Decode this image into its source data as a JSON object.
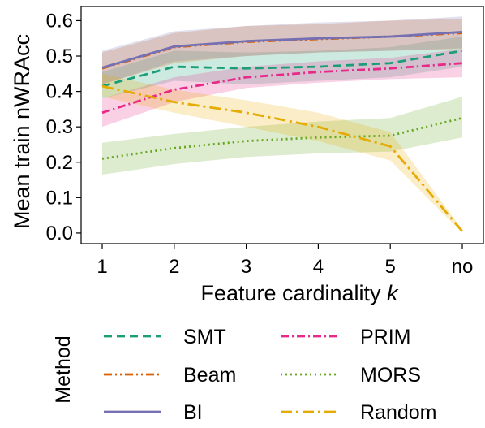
{
  "chart_data": {
    "type": "line",
    "xlabel": "Feature cardinality k",
    "xlabel_main": "Feature cardinality ",
    "xlabel_var": "k",
    "ylabel": "Mean train nWRAcc",
    "categories": [
      "1",
      "2",
      "3",
      "4",
      "5",
      "no"
    ],
    "ylim": [
      -0.03,
      0.64
    ],
    "yticks": [
      0.0,
      0.1,
      0.2,
      0.3,
      0.4,
      0.5,
      0.6
    ],
    "ytick_labels": [
      "0.0",
      "0.1",
      "0.2",
      "0.3",
      "0.4",
      "0.5",
      "0.6"
    ],
    "grid": false,
    "legend_title": "Method",
    "legend_position": "below",
    "series": [
      {
        "name": "SMT",
        "color": "#1b9e77",
        "dash": "10,6",
        "values": [
          0.415,
          0.47,
          0.465,
          0.47,
          0.48,
          0.515
        ],
        "lower": [
          0.38,
          0.43,
          0.42,
          0.43,
          0.44,
          0.47
        ],
        "upper": [
          0.455,
          0.515,
          0.51,
          0.515,
          0.525,
          0.555
        ]
      },
      {
        "name": "Beam",
        "color": "#d95f02",
        "dash": "10,4,2,4,2,4",
        "values": [
          0.465,
          0.525,
          0.54,
          0.548,
          0.555,
          0.565
        ],
        "lower": [
          0.42,
          0.48,
          0.5,
          0.51,
          0.515,
          0.52
        ],
        "upper": [
          0.51,
          0.565,
          0.585,
          0.59,
          0.6,
          0.605
        ]
      },
      {
        "name": "BI",
        "color": "#7570b3",
        "dash": "",
        "values": [
          0.467,
          0.527,
          0.542,
          0.55,
          0.555,
          0.568
        ],
        "lower": [
          0.42,
          0.485,
          0.5,
          0.51,
          0.515,
          0.522
        ],
        "upper": [
          0.515,
          0.57,
          0.585,
          0.595,
          0.6,
          0.612
        ]
      },
      {
        "name": "PRIM",
        "color": "#e7298a",
        "dash": "10,4,2,4",
        "values": [
          0.34,
          0.405,
          0.44,
          0.455,
          0.465,
          0.48
        ],
        "lower": [
          0.3,
          0.37,
          0.41,
          0.425,
          0.435,
          0.44
        ],
        "upper": [
          0.38,
          0.44,
          0.47,
          0.485,
          0.495,
          0.52
        ]
      },
      {
        "name": "MORS",
        "color": "#66a61e",
        "dash": "2,4",
        "values": [
          0.21,
          0.24,
          0.26,
          0.27,
          0.275,
          0.325
        ],
        "lower": [
          0.165,
          0.195,
          0.215,
          0.225,
          0.23,
          0.27
        ],
        "upper": [
          0.255,
          0.28,
          0.3,
          0.315,
          0.325,
          0.385
        ]
      },
      {
        "name": "Random",
        "color": "#e6ab02",
        "dash": "14,5,3,5",
        "values": [
          0.415,
          0.37,
          0.34,
          0.3,
          0.245,
          0.005
        ],
        "lower": [
          0.385,
          0.34,
          0.3,
          0.26,
          0.205,
          0.0
        ],
        "upper": [
          0.45,
          0.405,
          0.375,
          0.34,
          0.285,
          0.01
        ]
      }
    ]
  }
}
